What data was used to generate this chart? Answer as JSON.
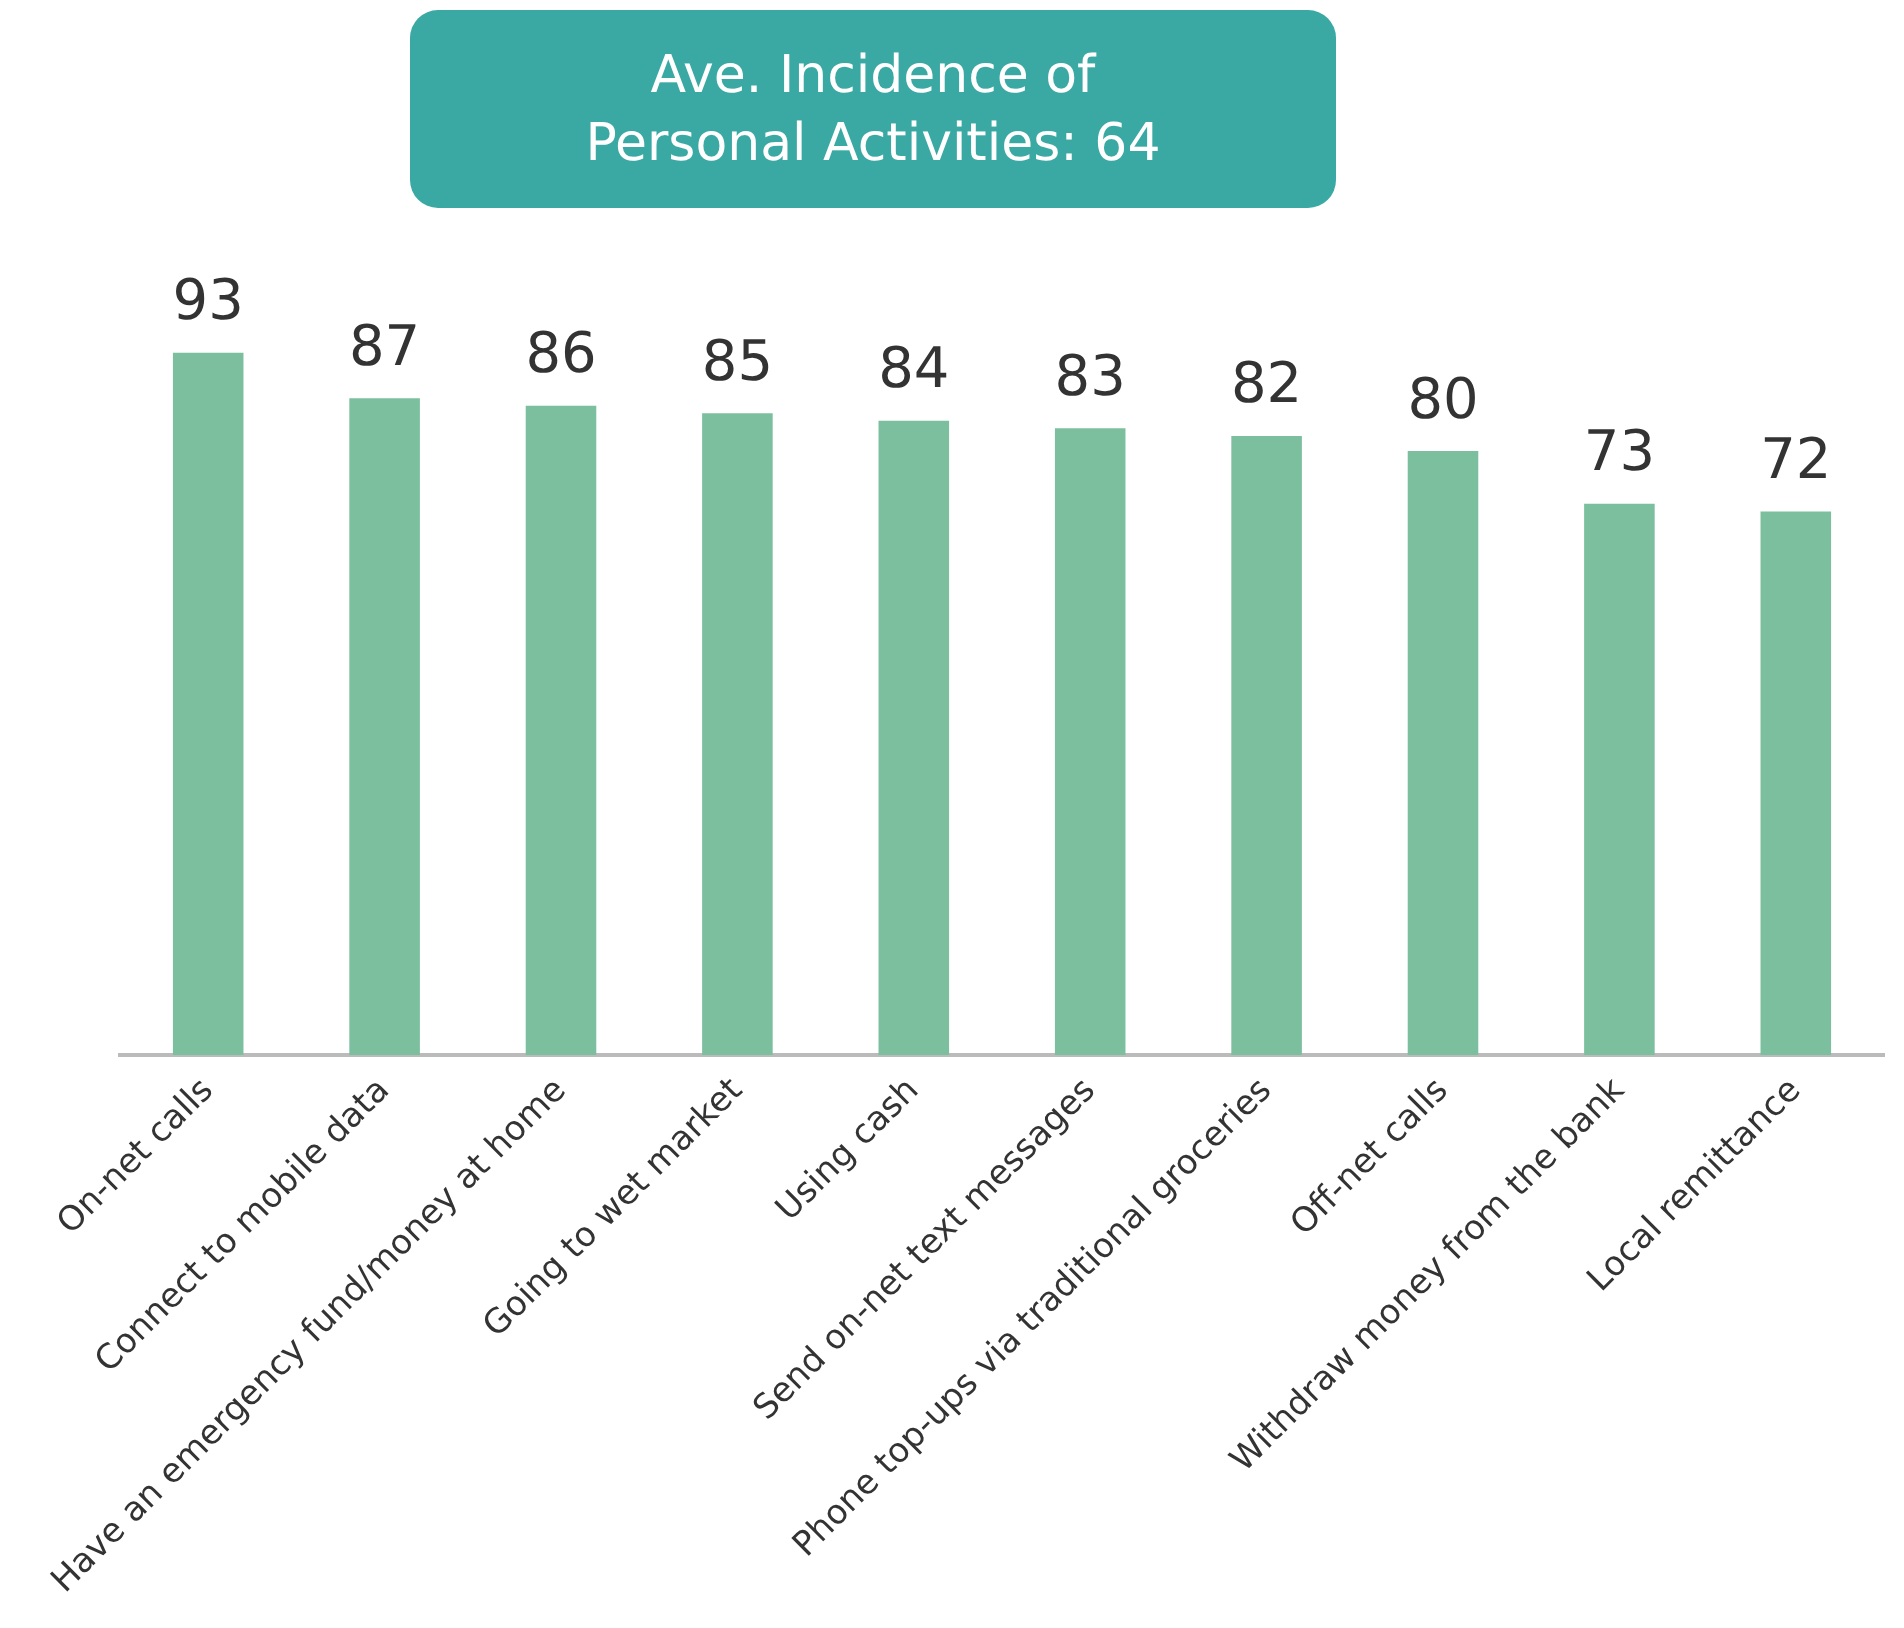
{
  "chart_data": {
    "type": "bar",
    "title": "Ave. Incidence of\nPersonal Activities: 64",
    "categories": [
      "On-net calls",
      "Connect to mobile data",
      "Have an emergency fund/money at home",
      "Going to wet market",
      "Using cash",
      "Send on-net text messages",
      "Phone top-ups via traditional groceries",
      "Off-net calls",
      "Withdraw money from the bank",
      "Local remittance"
    ],
    "values": [
      93,
      87,
      86,
      85,
      84,
      83,
      82,
      80,
      73,
      72
    ],
    "color": "#7bbf9e",
    "data_labels": true,
    "grid": false,
    "legend": false,
    "tick_labels": "x"
  }
}
